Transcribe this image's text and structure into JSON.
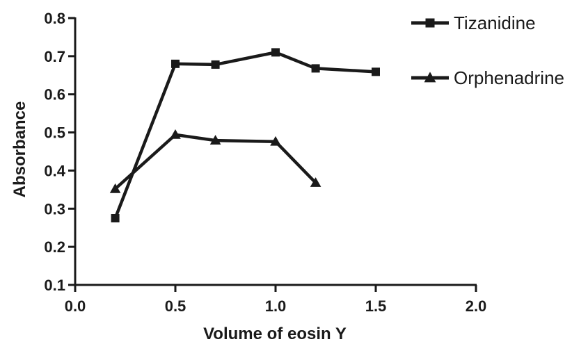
{
  "chart_data": {
    "type": "line",
    "title": "",
    "xlabel": "Volume of eosin Y",
    "ylabel": "Absorbance",
    "xlim": [
      0.0,
      2.0
    ],
    "ylim": [
      0.1,
      0.8
    ],
    "xticks": [
      "0.0",
      "0.5",
      "1.0",
      "1.5",
      "2.0"
    ],
    "yticks": [
      "0.1",
      "0.2",
      "0.3",
      "0.4",
      "0.5",
      "0.6",
      "0.7",
      "0.8"
    ],
    "grid": false,
    "legend_position": "top-right",
    "series": [
      {
        "name": "Tizanidine",
        "marker": "square",
        "color": "#1a1a1a",
        "x": [
          0.2,
          0.5,
          0.7,
          1.0,
          1.2,
          1.5
        ],
        "y": [
          0.275,
          0.68,
          0.678,
          0.71,
          0.668,
          0.659
        ]
      },
      {
        "name": "Orphenadrine",
        "marker": "triangle",
        "color": "#1a1a1a",
        "x": [
          0.2,
          0.5,
          0.7,
          1.0,
          1.2
        ],
        "y": [
          0.352,
          0.494,
          0.479,
          0.476,
          0.368
        ]
      }
    ]
  }
}
